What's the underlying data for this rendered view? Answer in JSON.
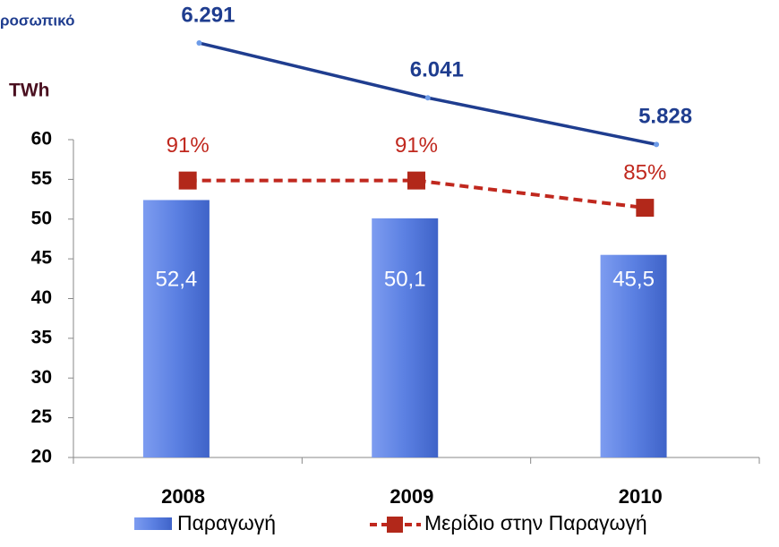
{
  "chart_data": {
    "type": "bar",
    "annotations": [
      "ροσωπικό"
    ],
    "y_label": "TWh",
    "categories": [
      "2008",
      "2009",
      "2010"
    ],
    "ylim": [
      20,
      60
    ],
    "yticks": [
      20,
      25,
      30,
      35,
      40,
      45,
      50,
      55,
      60
    ],
    "y2lim": [
      30,
      100
    ],
    "y3lim": [
      4400,
      5850
    ],
    "series": [
      {
        "name": "Παραγωγή",
        "type": "bar",
        "color": "#5b80e2",
        "values": [
          52.4,
          50.1,
          45.5
        ],
        "value_labels": [
          "52,4",
          "50,1",
          "45,5"
        ]
      },
      {
        "name": "Μερίδιο στην Παραγωγή",
        "type": "line",
        "axis": "y2",
        "dashed": true,
        "color": "#c0281e",
        "values": [
          91,
          91,
          85
        ],
        "value_labels": [
          "91%",
          "91%",
          "85%"
        ]
      },
      {
        "type": "line",
        "axis": "y3",
        "dashed": false,
        "color": "#1f3d8f",
        "values": [
          6291,
          6041,
          5828
        ],
        "value_labels": [
          "6.291",
          "6.041",
          "5.828"
        ]
      }
    ]
  }
}
